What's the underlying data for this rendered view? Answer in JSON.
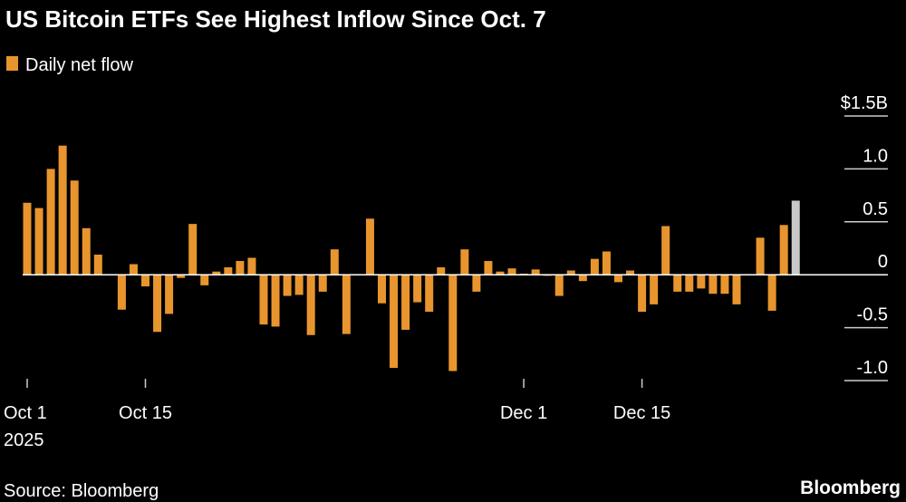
{
  "chart_data": {
    "type": "bar",
    "title": "US Bitcoin ETFs See Highest Inflow Since Oct. 7",
    "legend": "Daily net flow",
    "source": "Source: Bloomberg",
    "brand": "Bloomberg",
    "year_label": "2025",
    "categories": [
      "Oct 1",
      null,
      null,
      null,
      null,
      null,
      null,
      null,
      null,
      null,
      "Oct 15",
      null,
      null,
      null,
      null,
      null,
      null,
      null,
      null,
      null,
      null,
      null,
      null,
      null,
      null,
      null,
      null,
      null,
      null,
      null,
      null,
      null,
      null,
      null,
      null,
      null,
      null,
      null,
      null,
      null,
      null,
      null,
      "Dec 1",
      null,
      null,
      null,
      null,
      null,
      null,
      null,
      null,
      null,
      "Dec 15",
      null,
      null,
      null,
      null,
      null,
      null,
      null,
      null,
      null,
      null,
      null,
      null,
      null
    ],
    "values": [
      0.68,
      0.63,
      1.0,
      1.22,
      0.89,
      0.44,
      0.19,
      0,
      -0.33,
      0.1,
      -0.11,
      -0.54,
      -0.37,
      -0.03,
      0.48,
      -0.1,
      0.03,
      0.07,
      0.13,
      0.16,
      -0.47,
      -0.49,
      -0.2,
      -0.19,
      -0.57,
      -0.16,
      0.24,
      -0.56,
      0,
      0.53,
      -0.27,
      -0.88,
      -0.52,
      -0.26,
      -0.35,
      0.07,
      -0.91,
      0.24,
      -0.16,
      0.13,
      0.03,
      0.06,
      0.01,
      0.05,
      -0.01,
      -0.2,
      0.04,
      -0.06,
      0.15,
      0.22,
      -0.07,
      0.04,
      -0.35,
      -0.28,
      0.46,
      -0.16,
      -0.16,
      -0.13,
      -0.18,
      -0.18,
      -0.28,
      0,
      0.35,
      -0.34,
      0.47,
      0.7
    ],
    "color": "#e8952e",
    "last_color": "#c8c8c8",
    "ylim": [
      -1,
      1.5
    ],
    "yticks": [
      {
        "value": 1.5,
        "label": "$1.5B"
      },
      {
        "value": 1,
        "label": "1.0"
      },
      0.5,
      0,
      -0.5,
      {
        "value": -1,
        "label": "-1.0"
      }
    ]
  }
}
